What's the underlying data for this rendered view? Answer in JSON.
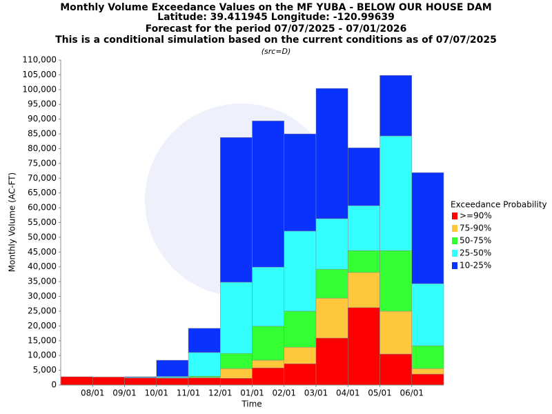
{
  "chart_data": {
    "type": "stacked_bar",
    "title": [
      "Monthly Volume Exceedance Values on the MF YUBA - BELOW OUR HOUSE DAM",
      "Latitude: 39.411945 Longitude: -120.99639",
      "Forecast for the period 07/07/2025 - 07/01/2026",
      "This is a conditional simulation based on the current conditions as of 07/07/2025"
    ],
    "subtitle": "(src=D)",
    "x_label": "Time",
    "y_label": "Monthly Volume (AC-FT)",
    "legend_title": "Exceedance Probability",
    "legend_position": "right",
    "categories": [
      null,
      "08/01",
      "09/01",
      "10/01",
      "11/01",
      "12/01",
      "01/01",
      "02/01",
      "03/01",
      "04/01",
      "05/01",
      "06/01"
    ],
    "series": [
      {
        "name": ">=90%",
        "color": "#ff0000",
        "values": [
          2800,
          2700,
          2400,
          2300,
          2400,
          2300,
          5800,
          7200,
          15900,
          26200,
          10500,
          3700
        ]
      },
      {
        "name": "75-90%",
        "color": "#ffc83c",
        "values": [
          0,
          0,
          0,
          100,
          200,
          3300,
          2600,
          5600,
          13500,
          11900,
          14500,
          1900
        ]
      },
      {
        "name": "50-75%",
        "color": "#33ff33",
        "values": [
          0,
          0,
          0,
          100,
          400,
          5100,
          11500,
          12200,
          9800,
          7400,
          20500,
          7700
        ]
      },
      {
        "name": "25-50%",
        "color": "#33ffff",
        "values": [
          0,
          0,
          200,
          400,
          8000,
          24100,
          20000,
          27100,
          17100,
          15200,
          38800,
          21000
        ]
      },
      {
        "name": "10-25%",
        "color": "#0a32ff",
        "values": [
          0,
          0,
          200,
          5500,
          8200,
          49000,
          49500,
          32900,
          44100,
          19600,
          20500,
          37600
        ]
      }
    ],
    "ylim": [
      0,
      110000
    ],
    "yticks": [
      0,
      {
        "value": 5000,
        "label": "5,000"
      },
      {
        "value": 10000,
        "label": "10,000"
      },
      {
        "value": 15000,
        "label": "15,000"
      },
      {
        "value": 20000,
        "label": "20,000"
      },
      {
        "value": 25000,
        "label": "25,000"
      },
      {
        "value": 30000,
        "label": "30,000"
      },
      {
        "value": 35000,
        "label": "35,000"
      },
      {
        "value": 40000,
        "label": "40,000"
      },
      {
        "value": 45000,
        "label": "45,000"
      },
      {
        "value": 50000,
        "label": "50,000"
      },
      {
        "value": 55000,
        "label": "55,000"
      },
      {
        "value": 60000,
        "label": "60,000"
      },
      {
        "value": 65000,
        "label": "65,000"
      },
      {
        "value": 70000,
        "label": "70,000"
      },
      {
        "value": 75000,
        "label": "75,000"
      },
      {
        "value": 80000,
        "label": "80,000"
      },
      {
        "value": 85000,
        "label": "85,000"
      },
      {
        "value": 90000,
        "label": "90,000"
      },
      {
        "value": 95000,
        "label": "95,000"
      },
      {
        "value": 100000,
        "label": "100,000"
      },
      {
        "value": 105000,
        "label": "105,000"
      },
      {
        "value": 110000,
        "label": "110,000"
      }
    ],
    "grid": false
  }
}
